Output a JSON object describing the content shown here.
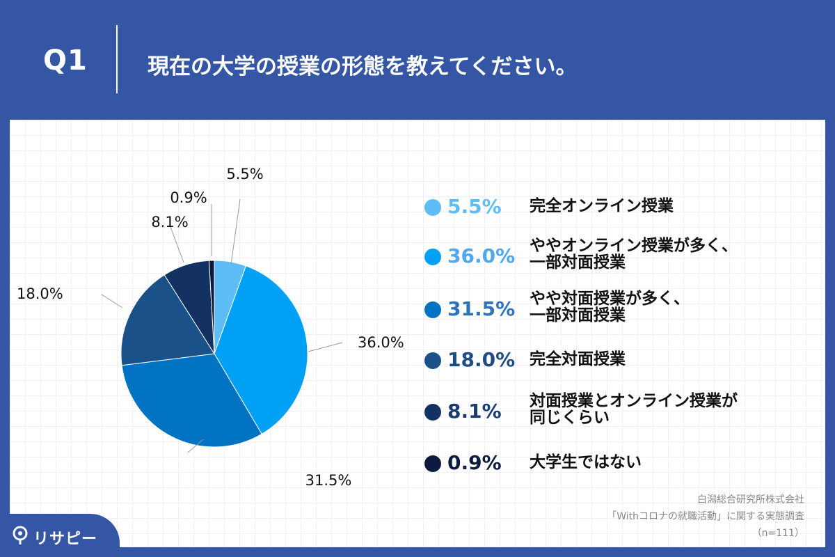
{
  "header": {
    "q_label": "Q1",
    "question": "現在の大学の授業の形態を教えてください。"
  },
  "chart_data": {
    "type": "pie",
    "title": "現在の大学の授業の形態を教えてください。",
    "categories": [
      "完全オンライン授業",
      "ややオンライン授業が多く、\n一部対面授業",
      "やや対面授業が多く、\n一部対面授業",
      "完全対面授業",
      "対面授業とオンライン授業が\n同じくらい",
      "大学生ではない"
    ],
    "values": [
      5.5,
      36.0,
      31.5,
      18.0,
      8.1,
      0.9
    ],
    "value_labels": [
      "5.5%",
      "36.0%",
      "31.5%",
      "18.0%",
      "8.1%",
      "0.9%"
    ],
    "colors": [
      "#5ebdf6",
      "#00a1f5",
      "#0073c2",
      "#1a5189",
      "#133262",
      "#0b1a3d"
    ],
    "legend_pct_colors": [
      "#5ebdf6",
      "#4fa7ee",
      "#2c73bd",
      "#1f4c84",
      "#193d73",
      "#0d1b3e"
    ],
    "legend_position": "right"
  },
  "source": {
    "line1": "白潟総合研究所株式会社",
    "line2": "「Withコロナの就職活動」に関する実態調査",
    "line3": "（n=111）"
  },
  "logo": {
    "text": "リサピー"
  }
}
